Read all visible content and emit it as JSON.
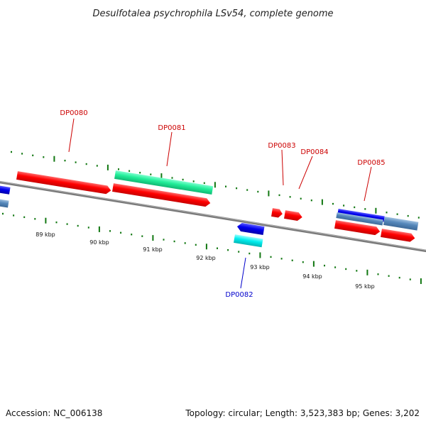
{
  "title": "Desulfotalea psychrophila LSv54, complete genome",
  "footer": {
    "accession": "Accession: NC_006138",
    "summary": "Topology: circular; Length: 3,523,383 bp; Genes: 3,202"
  },
  "colors": {
    "forward_gene": "#ff0000",
    "reverse_gene": "#0000ee",
    "rna_gene_forward": "#22ee99",
    "rna_gene_reverse": "#00eeee",
    "pseudo_gene": "#5588bb",
    "tick": "#117711",
    "backbone": "#808080",
    "label_forward": "#cc0000",
    "label_reverse": "#0000cc"
  },
  "ticks": [
    {
      "label": "89 kbp",
      "kbp": 89
    },
    {
      "label": "90 kbp",
      "kbp": 90
    },
    {
      "label": "91 kbp",
      "kbp": 91
    },
    {
      "label": "92 kbp",
      "kbp": 92
    },
    {
      "label": "93 kbp",
      "kbp": 93
    },
    {
      "label": "94 kbp",
      "kbp": 94
    },
    {
      "label": "95 kbp",
      "kbp": 95
    }
  ],
  "genes": [
    {
      "label": "DP0080",
      "strand": "+",
      "color": "forward_gene"
    },
    {
      "label": "DP0081",
      "strand": "+",
      "color": "rna_gene_forward"
    },
    {
      "label": "DP0082",
      "strand": "-",
      "color": "reverse_gene"
    },
    {
      "label": "DP0083",
      "strand": "+",
      "color": "forward_gene"
    },
    {
      "label": "DP0084",
      "strand": "+",
      "color": "forward_gene"
    },
    {
      "label": "DP0085",
      "strand": "+",
      "color": "forward_gene"
    }
  ]
}
